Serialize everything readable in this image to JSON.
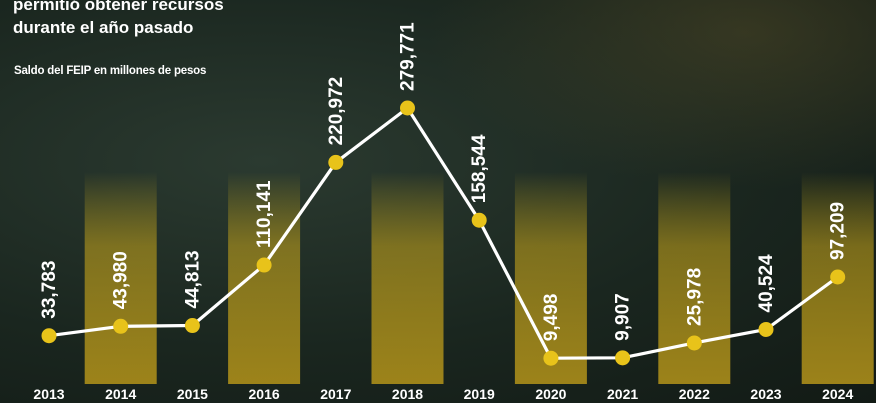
{
  "header": {
    "line1": "permitió obtener recursos",
    "line2": "durante el  año pasado",
    "subtitle": "Saldo del FEIP en millones de pesos"
  },
  "colors": {
    "accent": "#e8c31a",
    "line": "#ffffff",
    "text": "#ffffff"
  },
  "chart_data": {
    "type": "line",
    "title": "Saldo del FEIP en millones de pesos",
    "xlabel": "",
    "ylabel": "",
    "categories": [
      "2013",
      "2014",
      "2015",
      "2016",
      "2017",
      "2018",
      "2019",
      "2020",
      "2021",
      "2022",
      "2023",
      "2024"
    ],
    "series": [
      {
        "values": [
          33783,
          43980,
          44813,
          110141,
          220972,
          279771,
          158544,
          9498,
          9907,
          25978,
          40524,
          97209
        ]
      }
    ],
    "data_labels": [
      "33,783",
      "43,980",
      "44,813",
      "110,141",
      "220,972",
      "279,771",
      "158,544",
      "9,498",
      "9,907",
      "25,978",
      "40,524",
      "97,209"
    ],
    "ylim": [
      0,
      300000
    ],
    "grid": false,
    "legend": "none"
  }
}
